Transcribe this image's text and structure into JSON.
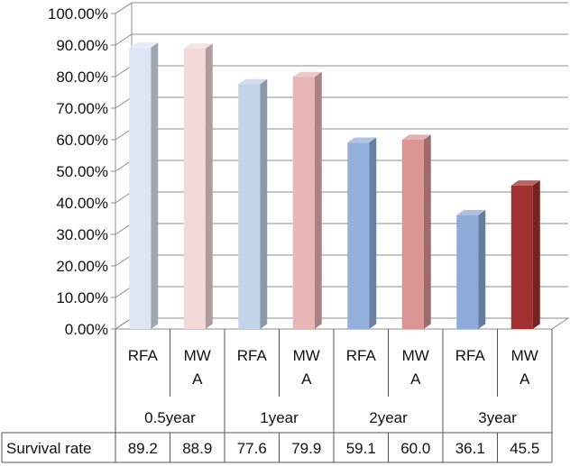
{
  "chart_data": {
    "type": "bar",
    "style": "3d-column",
    "yaxis": {
      "ticks": [
        "0.00%",
        "10.00%",
        "20.00%",
        "30.00%",
        "40.00%",
        "50.00%",
        "60.00%",
        "70.00%",
        "80.00%",
        "90.00%",
        "100.00%"
      ],
      "ylim": [
        0,
        100
      ],
      "unit": "%",
      "grid": true
    },
    "groups": [
      "0.5year",
      "1year",
      "2year",
      "3year"
    ],
    "categories": [
      {
        "label": "RFA",
        "group": 0
      },
      {
        "label": "MW A",
        "group": 0
      },
      {
        "label": "RFA",
        "group": 1
      },
      {
        "label": "MW A",
        "group": 1
      },
      {
        "label": "RFA",
        "group": 2
      },
      {
        "label": "MW A",
        "group": 2
      },
      {
        "label": "RFA",
        "group": 3
      },
      {
        "label": "MW A",
        "group": 3
      }
    ],
    "values": [
      89.2,
      88.9,
      77.6,
      79.9,
      59.1,
      60.0,
      36.1,
      45.5
    ],
    "value_labels": [
      "89.2",
      "88.9",
      "77.6",
      "79.9",
      "59.1",
      "60.0",
      "36.1",
      "45.5"
    ],
    "colors": [
      "#dce6f5",
      "#f4d9d9",
      "#c3d3ea",
      "#e9b6b6",
      "#93b1dd",
      "#dc9595",
      "#8eacd9",
      "#a13030"
    ],
    "table": {
      "row_label": "Survival rate"
    },
    "legend": "none"
  }
}
